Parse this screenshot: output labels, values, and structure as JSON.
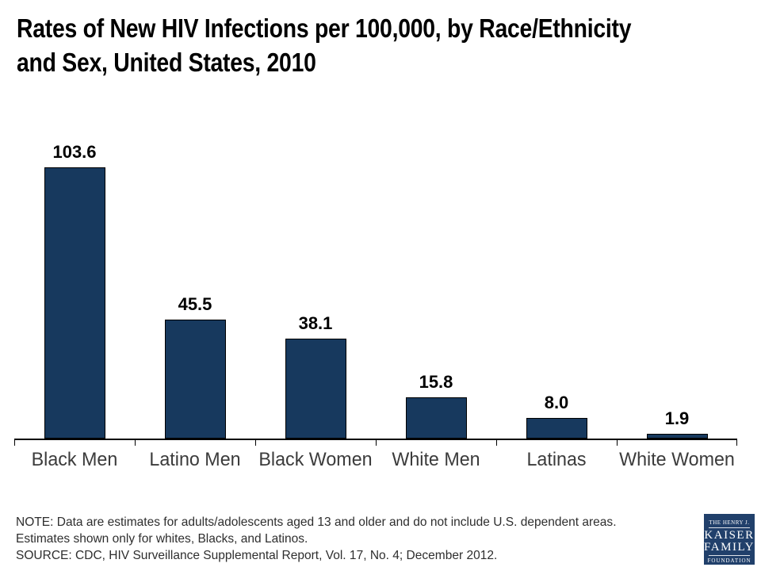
{
  "header": {
    "title_line1": "Rates of New HIV Infections per 100,000, by Race/Ethnicity",
    "title_line2": "and Sex, United States, 2010"
  },
  "chart_data": {
    "type": "bar",
    "title": "Rates of New HIV Infections per 100,000, by Race/Ethnicity and Sex, United States, 2010",
    "categories": [
      "Black Men",
      "Latino Men",
      "Black Women",
      "White Men",
      "Latinas",
      "White Women"
    ],
    "values": [
      103.6,
      45.5,
      38.1,
      15.8,
      8.0,
      1.9
    ],
    "value_labels": [
      "103.6",
      "45.5",
      "38.1",
      "15.8",
      "8.0",
      "1.9"
    ],
    "xlabel": "",
    "ylabel": "",
    "ylim": [
      0,
      110
    ],
    "grid": false,
    "legend": "none",
    "y_axis_visible": false,
    "data_label_position": "above bars",
    "bar_color": "#17395E",
    "bar_border_color": "#000000",
    "axis_color": "#000000"
  },
  "footer": {
    "note": "NOTE: Data are estimates for adults/adolescents aged 13 and older and do not include U.S. dependent areas.  Estimates shown only for whites, Blacks, and Latinos.",
    "source": "SOURCE: CDC, HIV Surveillance Supplemental Report, Vol. 17, No. 4; December 2012."
  },
  "logo": {
    "line1": "THE HENRY J.",
    "line2": "KAISER",
    "line3": "FAMILY",
    "line4": "FOUNDATION",
    "bg_color": "#21406B"
  }
}
